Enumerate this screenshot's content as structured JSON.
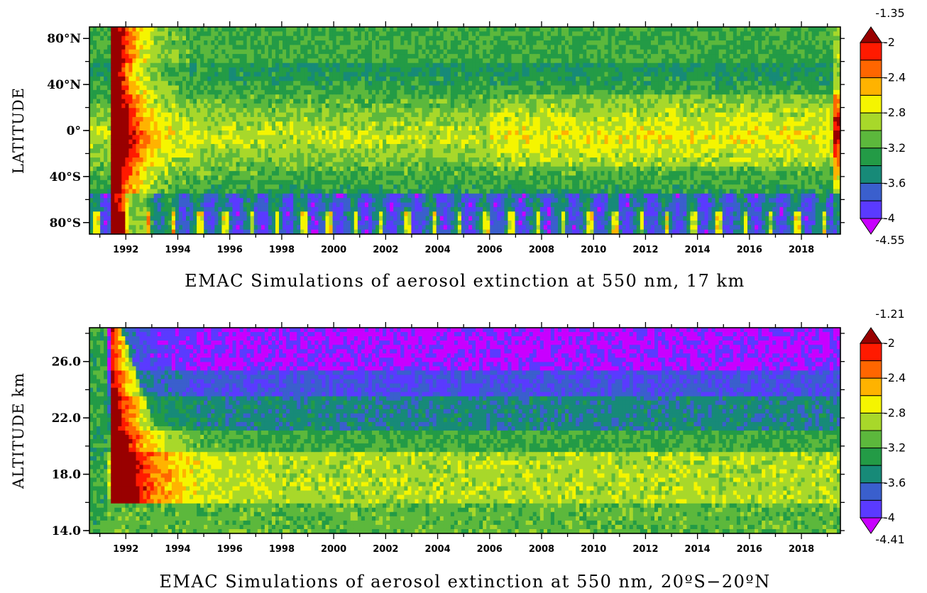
{
  "chart_data": [
    {
      "type": "heatmap",
      "title": "EMAC Simulations of aerosol extinction at 550 nm, 17 km",
      "ylabel": "LATITUDE",
      "x_tick_labels": [
        "1992",
        "1994",
        "1996",
        "1998",
        "2000",
        "2002",
        "2004",
        "2006",
        "2008",
        "2010",
        "2012",
        "2014",
        "2016",
        "2018"
      ],
      "xlim": [
        1990.6,
        2019.5
      ],
      "y_tick_labels": [
        "80°N",
        "40°N",
        "0°",
        "40°S",
        "80°S"
      ],
      "y_tick_values": [
        80,
        40,
        0,
        -40,
        -80
      ],
      "ylim": [
        -90,
        90
      ],
      "colorbar": {
        "max_label": "-1.35",
        "min_label": "-4.55",
        "levels": [
          "-2",
          "-2.4",
          "-2.8",
          "-3.2",
          "-3.6",
          "-4"
        ],
        "colors": [
          "#990000",
          "#ff1a00",
          "#ff6600",
          "#ffb300",
          "#f5f500",
          "#a8d82a",
          "#5cb83c",
          "#239b46",
          "#178a78",
          "#3a5fcd",
          "#5a3aff",
          "#c800ff"
        ]
      }
    },
    {
      "type": "heatmap",
      "title": "EMAC Simulations of aerosol extinction at 550 nm, 20ºS−20ºN",
      "ylabel": "ALTITUDE  km",
      "x_tick_labels": [
        "1992",
        "1994",
        "1996",
        "1998",
        "2000",
        "2002",
        "2004",
        "2006",
        "2008",
        "2010",
        "2012",
        "2014",
        "2016",
        "2018"
      ],
      "xlim": [
        1990.6,
        2019.5
      ],
      "y_tick_labels": [
        "26.0",
        "22.0",
        "18.0",
        "14.0"
      ],
      "y_tick_values": [
        26,
        22,
        18,
        14
      ],
      "ylim": [
        13.8,
        28.4
      ],
      "colorbar": {
        "max_label": "-1.21",
        "min_label": "-4.41",
        "levels": [
          "-2",
          "-2.4",
          "-2.8",
          "-3.2",
          "-3.6",
          "-4"
        ],
        "colors": [
          "#990000",
          "#ff1a00",
          "#ff6600",
          "#ffb300",
          "#f5f500",
          "#a8d82a",
          "#5cb83c",
          "#239b46",
          "#178a78",
          "#3a5fcd",
          "#5a3aff",
          "#c800ff"
        ]
      }
    }
  ]
}
